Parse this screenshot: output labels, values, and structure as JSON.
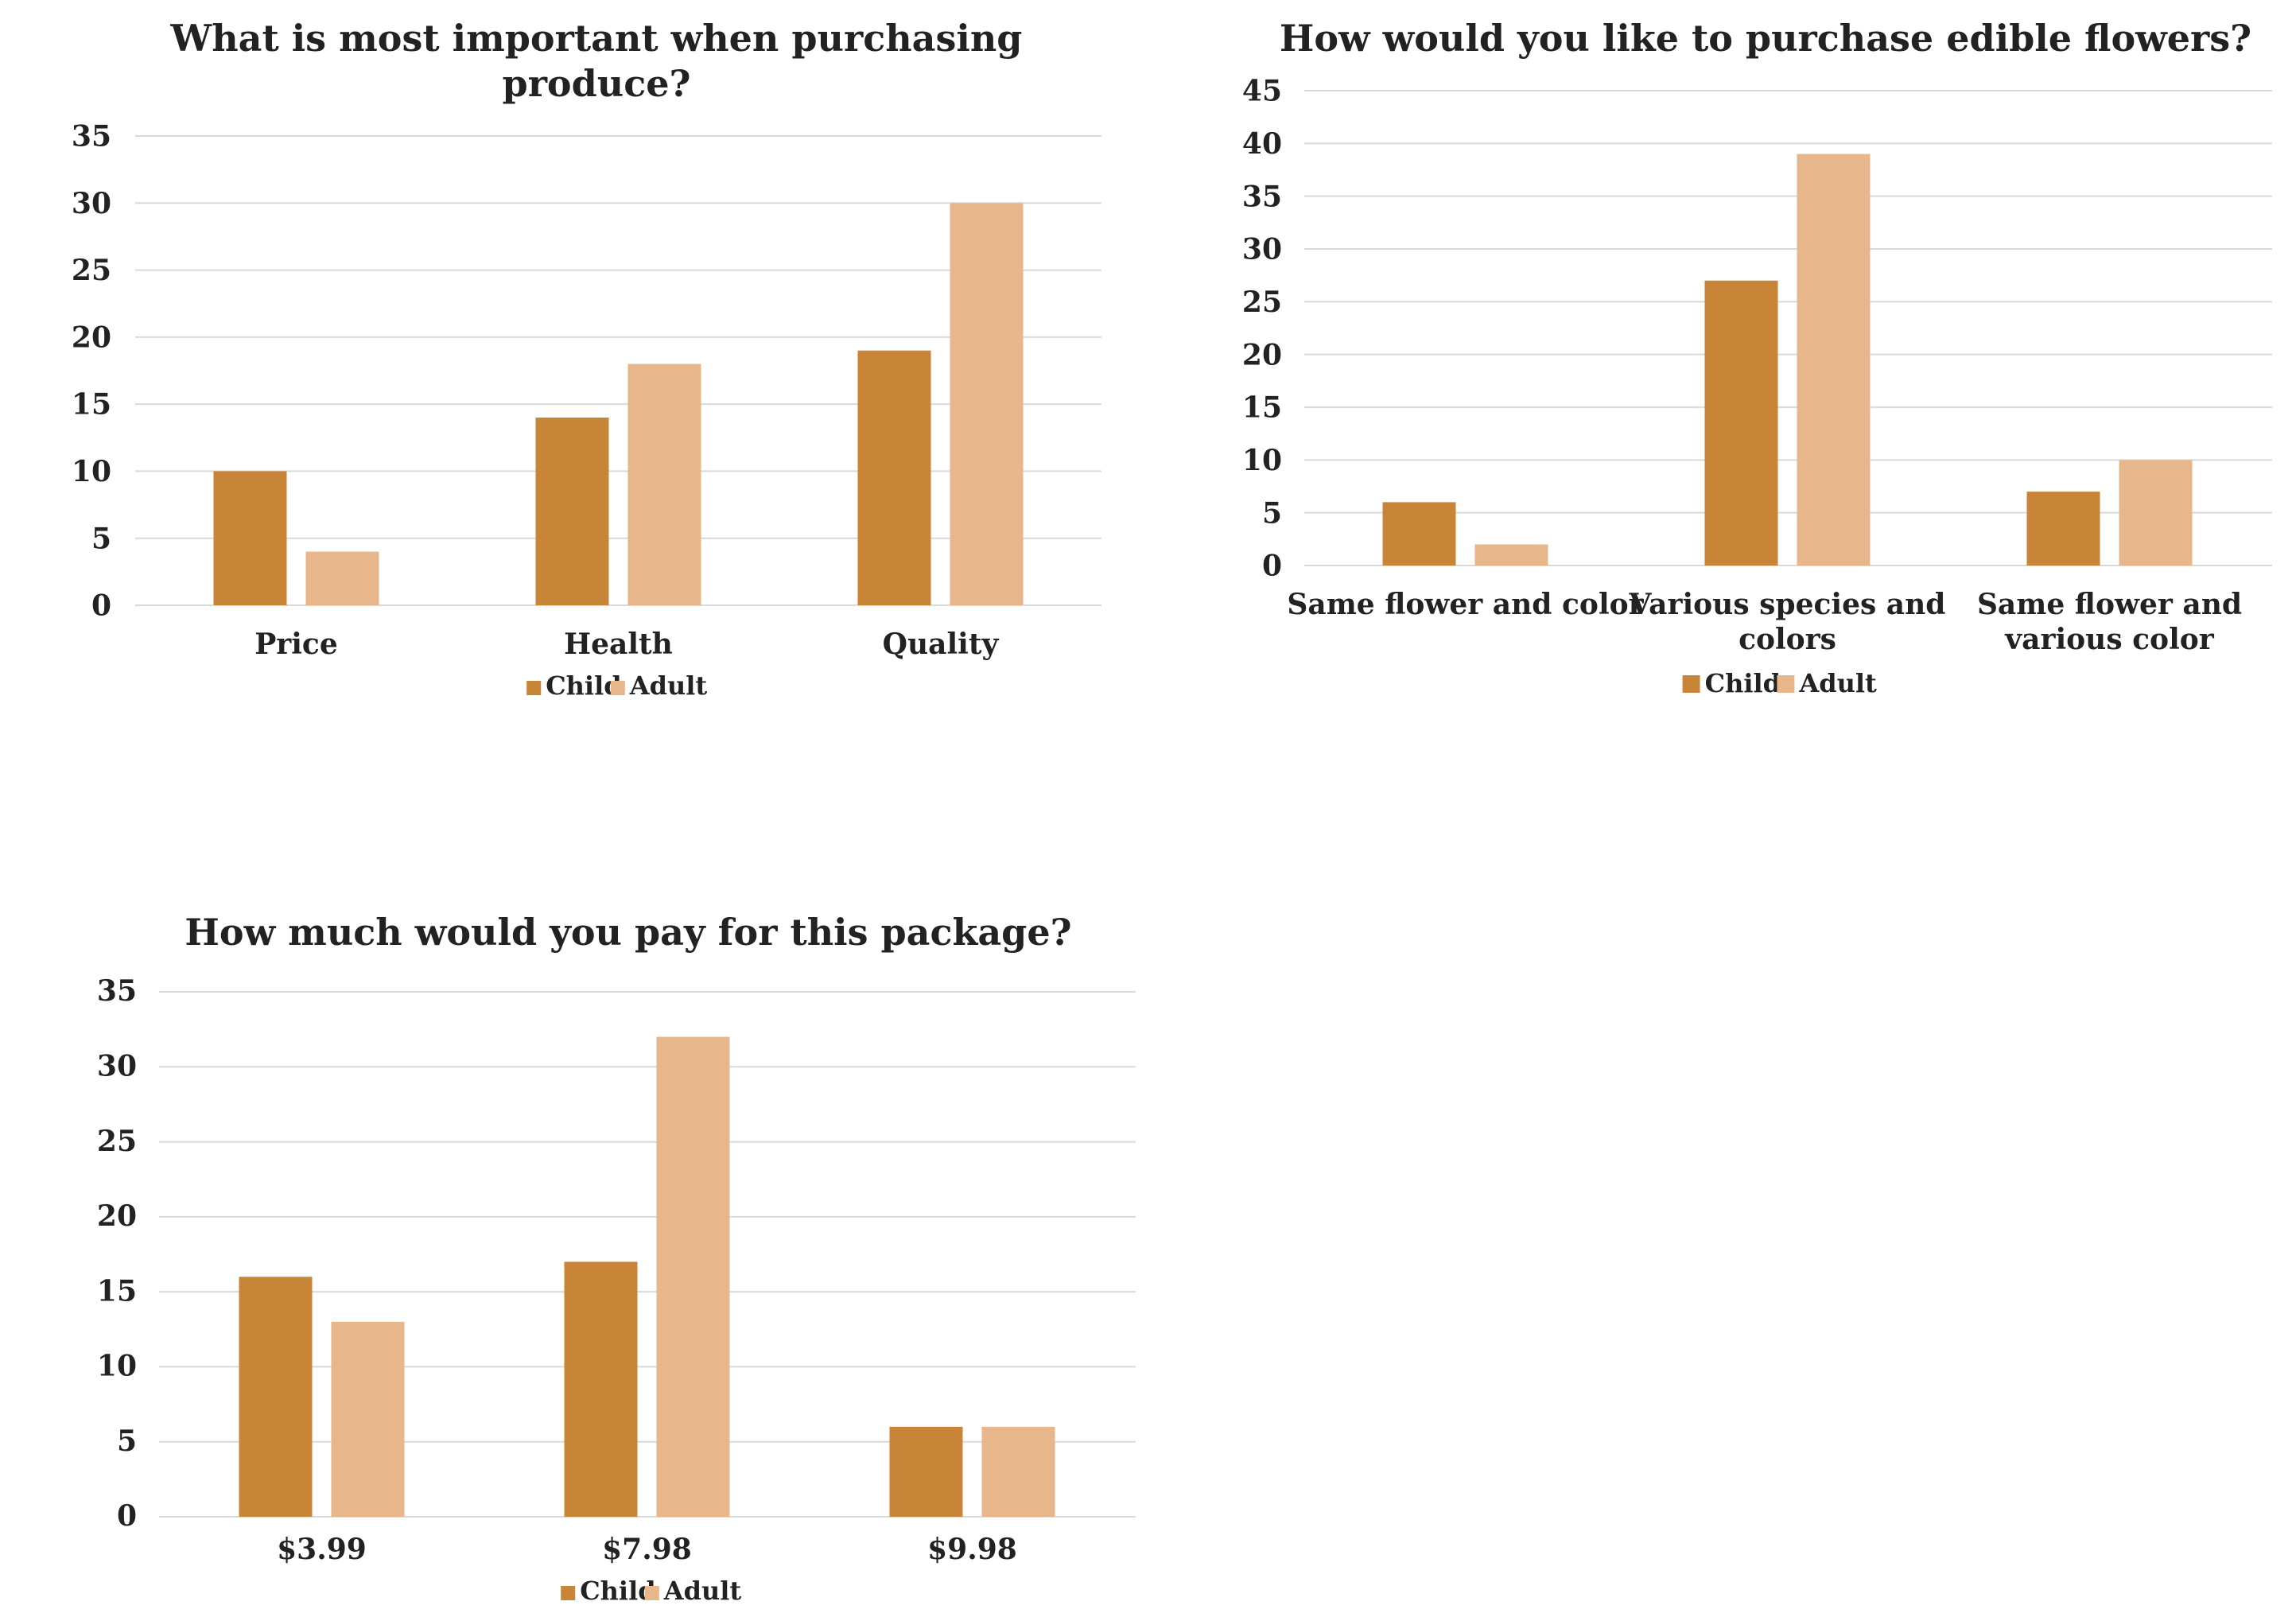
{
  "chart_data": [
    {
      "type": "bar",
      "title": [
        "What is most important when purchasing",
        "produce?"
      ],
      "categories": [
        [
          "Price"
        ],
        [
          "Health"
        ],
        [
          "Quality"
        ]
      ],
      "series": [
        {
          "name": "Child",
          "values": [
            10,
            14,
            19
          ]
        },
        {
          "name": "Adult",
          "values": [
            4,
            18,
            30
          ]
        }
      ],
      "ylim": [
        0,
        35
      ],
      "yticks": [
        0,
        5,
        10,
        15,
        20,
        25,
        30,
        35
      ],
      "grid": true,
      "legend": "bottom-center"
    },
    {
      "type": "bar",
      "title": [
        "How would you like to purchase edible flowers?"
      ],
      "categories": [
        [
          "Same flower and color"
        ],
        [
          "Various species and",
          "colors"
        ],
        [
          "Same flower and",
          "various color"
        ]
      ],
      "series": [
        {
          "name": "Child",
          "values": [
            6,
            27,
            7
          ]
        },
        {
          "name": "Adult",
          "values": [
            2,
            39,
            10
          ]
        }
      ],
      "ylim": [
        0,
        45
      ],
      "yticks": [
        0,
        5,
        10,
        15,
        20,
        25,
        30,
        35,
        40,
        45
      ],
      "grid": true,
      "legend": "bottom-center"
    },
    {
      "type": "bar",
      "title": [
        "How much would you pay for this package?"
      ],
      "categories": [
        [
          "$3.99"
        ],
        [
          "$7.98"
        ],
        [
          "$9.98"
        ]
      ],
      "series": [
        {
          "name": "Child",
          "values": [
            16,
            17,
            6
          ]
        },
        {
          "name": "Adult",
          "values": [
            13,
            32,
            6
          ]
        }
      ],
      "ylim": [
        0,
        35
      ],
      "yticks": [
        0,
        5,
        10,
        15,
        20,
        25,
        30,
        35
      ],
      "grid": true,
      "legend": "bottom-center"
    }
  ],
  "colors": {
    "child": "#c88537",
    "adult": "#e8b68b"
  }
}
